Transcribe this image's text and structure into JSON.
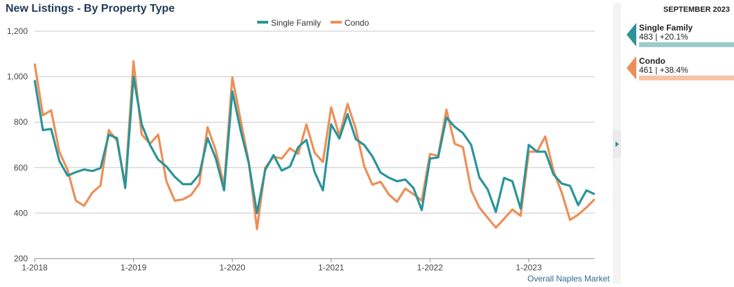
{
  "chart_data": {
    "type": "line",
    "title": "New Listings - By Property Type",
    "xlabel": "",
    "ylabel": "",
    "ylim": [
      200,
      1200
    ],
    "yticks": [
      200,
      400,
      600,
      800,
      1000,
      1200
    ],
    "ytick_labels": [
      "200",
      "400",
      "600",
      "800",
      "1,000",
      "1,200"
    ],
    "xticks": [
      "1-2018",
      "1-2019",
      "1-2020",
      "1-2021",
      "1-2022",
      "1-2023"
    ],
    "x_start": "2018-01",
    "x_end": "2023-09",
    "grid": true,
    "legend_position": "top-center",
    "series": [
      {
        "name": "Single Family",
        "color": "#2a9499",
        "values": [
          985,
          765,
          770,
          630,
          565,
          580,
          592,
          585,
          598,
          745,
          730,
          510,
          1000,
          790,
          700,
          635,
          605,
          560,
          527,
          527,
          570,
          730,
          640,
          500,
          935,
          765,
          620,
          400,
          590,
          655,
          587,
          605,
          690,
          722,
          580,
          500,
          790,
          728,
          835,
          725,
          700,
          650,
          578,
          556,
          540,
          548,
          510,
          413,
          640,
          645,
          820,
          780,
          752,
          700,
          557,
          505,
          405,
          555,
          540,
          420,
          700,
          670,
          670,
          570,
          530,
          520,
          435,
          500,
          483
        ]
      },
      {
        "name": "Condo",
        "color": "#ec8f57",
        "values": [
          1058,
          830,
          852,
          670,
          590,
          455,
          432,
          490,
          522,
          765,
          718,
          525,
          1068,
          745,
          705,
          745,
          540,
          455,
          460,
          480,
          530,
          778,
          675,
          520,
          997,
          810,
          625,
          330,
          600,
          648,
          640,
          685,
          660,
          790,
          665,
          625,
          865,
          740,
          880,
          770,
          608,
          525,
          538,
          482,
          450,
          508,
          483,
          455,
          660,
          652,
          855,
          705,
          690,
          500,
          425,
          380,
          336,
          375,
          416,
          388,
          670,
          670,
          737,
          585,
          490,
          370,
          393,
          425,
          461
        ]
      }
    ]
  },
  "side_panel": {
    "period": "SEPTEMBER 2023",
    "kpis": [
      {
        "name": "Single Family",
        "value": "483 | +20.1%",
        "color": "#2a9499",
        "bar_color": "#9ccbcc"
      },
      {
        "name": "Condo",
        "value": "461 | +38.4%",
        "color": "#ec8f57",
        "bar_color": "#f6c3a5"
      }
    ]
  },
  "source_note": "Overall Naples Market"
}
